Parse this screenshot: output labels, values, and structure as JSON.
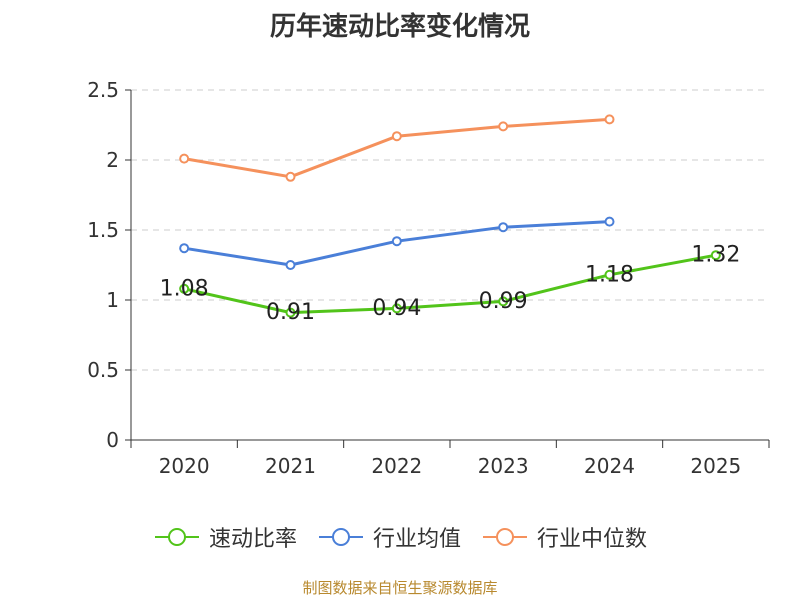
{
  "chart_data": {
    "type": "line",
    "title": "历年速动比率变化情况",
    "categories": [
      "2020",
      "2021",
      "2022",
      "2023",
      "2024",
      "2025"
    ],
    "ylim": [
      0,
      2.5
    ],
    "yticks": [
      "0",
      "0.5",
      "1",
      "1.5",
      "2",
      "2.5"
    ],
    "ytick_values": [
      0,
      0.5,
      1,
      1.5,
      2,
      2.5
    ],
    "grid": true,
    "legend_position": "bottom",
    "series": [
      {
        "name": "速动比率",
        "color": "#52c41a",
        "values": [
          1.08,
          0.91,
          0.94,
          0.99,
          1.18,
          1.32
        ],
        "data_labels": [
          "1.08",
          "0.91",
          "0.94",
          "0.99",
          "1.18",
          "1.32"
        ]
      },
      {
        "name": "行业均值",
        "color": "#4a7fd8",
        "values": [
          1.37,
          1.25,
          1.42,
          1.52,
          1.56,
          null
        ]
      },
      {
        "name": "行业中位数",
        "color": "#f5915c",
        "values": [
          2.01,
          1.88,
          2.17,
          2.24,
          2.29,
          null
        ]
      }
    ]
  },
  "source": "制图数据来自恒生聚源数据库"
}
